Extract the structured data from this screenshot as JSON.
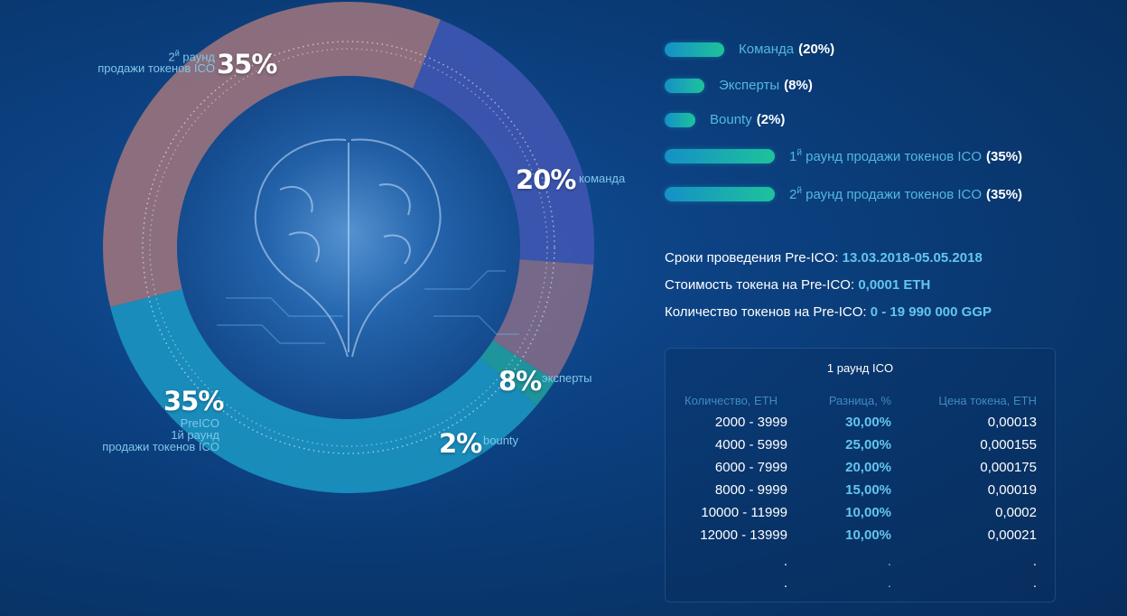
{
  "chart_data": {
    "type": "pie",
    "slices": [
      {
        "name": "Команда",
        "value": 20,
        "color": "#3e56b0",
        "pct_label": "20%",
        "label": "команда"
      },
      {
        "name": "Эксперты",
        "value": 8,
        "color": "#7e6a88",
        "pct_label": "8%",
        "label": "эксперты"
      },
      {
        "name": "Bounty",
        "value": 2,
        "color": "#1f9a9c",
        "pct_label": "2%",
        "label": "bounty"
      },
      {
        "name": "1й раунд продажи токенов ICO",
        "value": 35,
        "color": "#1a93bf",
        "pct_label": "35%",
        "label_lines": [
          "PreICO",
          "1й раунд",
          "продажи токенов ICO"
        ]
      },
      {
        "name": "2й раунд продажи токенов ICO",
        "value": 35,
        "color": "#97727d",
        "pct_label": "35%",
        "label_lines": [
          "2й раунд",
          "продажи токенов ICO"
        ]
      }
    ],
    "legend_placement": "right"
  },
  "legend": [
    {
      "label": "Команда",
      "sup": "",
      "pct": "(20%)"
    },
    {
      "label": "Эксперты",
      "sup": "",
      "pct": "(8%)"
    },
    {
      "label": "Bounty",
      "sup": "",
      "pct": "(2%)"
    },
    {
      "label_pre": "1",
      "sup": "й",
      "label": " раунд продажи токенов ICO",
      "pct": "(35%)"
    },
    {
      "label_pre": "2",
      "sup": "й",
      "label": " раунд продажи токенов ICO",
      "pct": "(35%)"
    }
  ],
  "info": {
    "dates_label": "Сроки проведения Pre-ICO:",
    "dates_value": "13.03.2018-05.05.2018",
    "price_label": "Стоимость токена на Pre-ICO:",
    "price_value": "0,0001 ETH",
    "qty_label": "Количество токенов на Pre-ICO:",
    "qty_value": "0 - 19 990 000 GGP"
  },
  "table": {
    "title": "1 раунд ICO",
    "headers": [
      "Количество, ETH",
      "Разница, %",
      "Цена токена, ETH"
    ],
    "rows": [
      [
        "2000 -  3999",
        "30,00%",
        "0,00013"
      ],
      [
        "4000 -  5999",
        "25,00%",
        "0,000155"
      ],
      [
        "6000 -  7999",
        "20,00%",
        "0,000175"
      ],
      [
        "8000 -  9999",
        "15,00%",
        "0,00019"
      ],
      [
        "10000 -  11999",
        "10,00%",
        "0,0002"
      ],
      [
        "12000 - 13999",
        "10,00%",
        "0,00021"
      ]
    ],
    "continuation": [
      ".",
      ".",
      "."
    ]
  }
}
